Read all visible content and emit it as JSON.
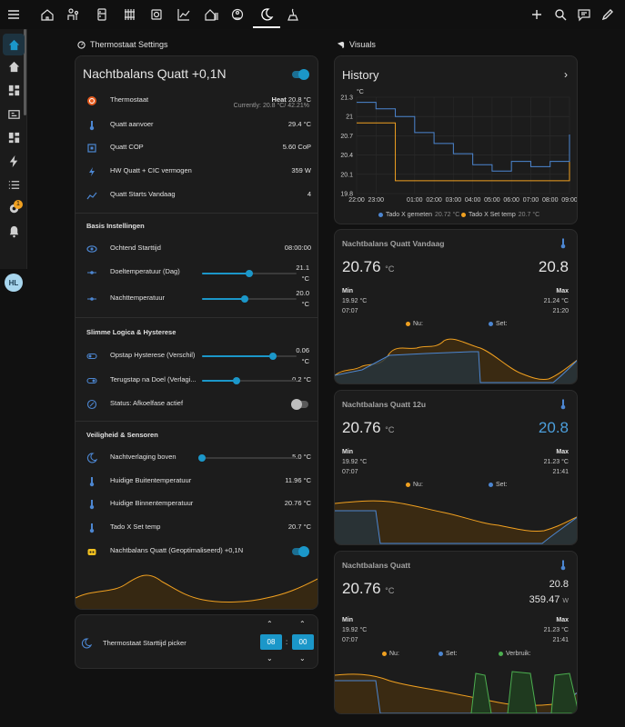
{
  "colors": {
    "accent": "#1b97c9",
    "orange": "#f0a020",
    "blue": "#4c86d1",
    "green": "#4caf50",
    "background": "#111111",
    "card": "#1c1c1c"
  },
  "topbar": {
    "tabs": [
      "home-icon",
      "thermostat-people-icon",
      "fridge-icon",
      "radiator-icon",
      "boiler-icon",
      "chart-line-icon",
      "home-heat-icon",
      "robot-vacuum-icon",
      "weather-night-icon",
      "heat-pump-icon"
    ],
    "actions": [
      "plus-icon",
      "search-icon",
      "chat-icon",
      "pencil-icon"
    ]
  },
  "sidebar": {
    "items": [
      "home-icon",
      "home-icon",
      "dashboard-icon",
      "id-card-icon",
      "dashboard-icon",
      "lightning-icon",
      "list-icon",
      "settings-icon",
      "bell-icon"
    ],
    "badge": "1",
    "avatar": "HL"
  },
  "left_section": {
    "title": "Thermostaat Settings"
  },
  "thermostat_card": {
    "title": "Nachtbalans Quatt +0,1N",
    "rows": [
      {
        "icon": "thermostat-icon",
        "label": "Thermostaat",
        "value_bold": "Heat",
        "value": "20.8 °C",
        "sub": "Currently: 20.8 °C/ 42.21%"
      },
      {
        "icon": "thermometer-icon",
        "label": "Quatt aanvoer",
        "value": "29.4 °C"
      },
      {
        "icon": "chip-icon",
        "label": "Quatt COP",
        "value": "5.60 CoP"
      },
      {
        "icon": "lightning-icon",
        "label": "HW Quatt + CIC vermogen",
        "value": "359 W"
      },
      {
        "icon": "chart-icon",
        "label": "Quatt Starts Vandaag",
        "value": "4"
      }
    ],
    "basis": {
      "title": "Basis Instellingen",
      "start_label": "Ochtend Starttijd",
      "start_value": "08:00:00",
      "doel_label": "Doeltemperatuur (Dag)",
      "doel_value": "21.1",
      "doel_unit": "°C",
      "doel_level": 0.5,
      "nacht_label": "Nachttemperatuur",
      "nacht_value": "20.0",
      "nacht_unit": "°C",
      "nacht_level": 0.45
    },
    "slimme": {
      "title": "Slimme Logica & Hysterese",
      "opstap_label": "Opstap Hysterese (Verschil)",
      "opstap_value": "0.06",
      "opstap_unit": "°C",
      "opstap_level": 0.75,
      "terug_label": "Terugstap na Doel (Verlagi...",
      "terug_value": "0.2 °C",
      "terug_level": 0.37,
      "status_label": "Status: Afkoelfase actief"
    },
    "veilig": {
      "title": "Veiligheid & Sensoren",
      "verlaging_label": "Nachtverlaging boven",
      "verlaging_value": "5.0 °C",
      "verlaging_level": 0.0,
      "buiten_label": "Huidige Buitentemperatuur",
      "buiten_value": "11.96 °C",
      "binnen_label": "Huidige Binnentemperatuur",
      "binnen_value": "20.76 °C",
      "tado_label": "Tado X Set temp",
      "tado_value": "20.7 °C",
      "geopt_label": "Nachtbalans Quatt (Geoptimaliseerd) +0,1N"
    }
  },
  "picker_card": {
    "label": "Thermostaat Starttijd picker",
    "hour": "08",
    "minute": "00",
    "sep": ":"
  },
  "right_section": {
    "title": "Visuals"
  },
  "history_card": {
    "title": "History",
    "unit": "°C"
  },
  "chart_data": {
    "type": "line",
    "title": "History",
    "ylabel": "°C",
    "ylim": [
      19.8,
      21.3
    ],
    "yticks": [
      "21.3",
      "21",
      "20.7",
      "20.4",
      "20.1",
      "19.8"
    ],
    "x": [
      "22:00",
      "23:00",
      "00:00",
      "01:00",
      "02:00",
      "03:00",
      "04:00",
      "05:00",
      "06:00",
      "07:00",
      "08:00",
      "09:00"
    ],
    "xticks": [
      "22:00",
      "23:00",
      "01:00",
      "02:00",
      "03:00",
      "04:00",
      "05:00",
      "06:00",
      "07:00",
      "08:00",
      "09:00"
    ],
    "series": [
      {
        "name": "Tado X gemeten",
        "value_label": "20.72 °C",
        "color": "#4c86d1",
        "values": [
          21.22,
          21.12,
          21.0,
          20.75,
          20.58,
          20.42,
          20.25,
          20.15,
          20.3,
          20.22,
          20.3,
          20.72
        ]
      },
      {
        "name": "Tado X Set temp",
        "value_label": "20.7 °C",
        "color": "#f0a020",
        "values": [
          20.9,
          20.9,
          20.0,
          20.0,
          20.0,
          20.0,
          20.0,
          20.0,
          20.0,
          20.0,
          20.0,
          20.7
        ]
      }
    ],
    "grid": true,
    "legend": "bottom"
  },
  "sensor_cards": [
    {
      "title": "Nachtbalans Quatt Vandaag",
      "value": "20.76",
      "unit": "°C",
      "right": "20.8",
      "min_label": "Min",
      "min_value": "19.92 °C",
      "min_time": "07:07",
      "max_label": "Max",
      "max_value": "21.24 °C",
      "max_time": "21:20",
      "legend1": "Nu:",
      "legend2": "Set:"
    },
    {
      "title": "Nachtbalans Quatt 12u",
      "value": "20.76",
      "unit": "°C",
      "right": "20.8",
      "min_label": "Min",
      "min_value": "19.92 °C",
      "min_time": "07:07",
      "max_label": "Max",
      "max_value": "21.23 °C",
      "max_time": "21:41",
      "legend1": "Nu:",
      "legend2": "Set:"
    },
    {
      "title": "Nachtbalans Quatt",
      "value": "20.76",
      "unit": "°C",
      "right": "20.8",
      "right2": "359.47",
      "right2_unit": "W",
      "min_label": "Min",
      "min_value": "19.92 °C",
      "min_time": "07:07",
      "max_label": "Max",
      "max_value": "21.23 °C",
      "max_time": "21:41",
      "legend1": "Nu:",
      "legend2": "Set:",
      "legend3": "Verbruik:"
    }
  ]
}
